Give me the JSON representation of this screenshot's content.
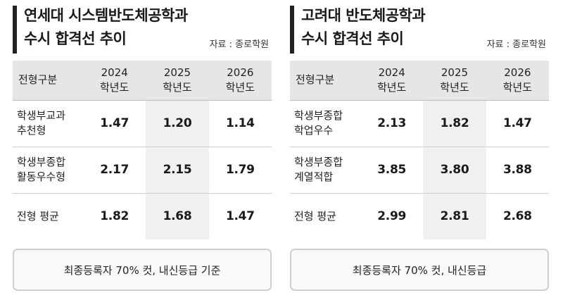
{
  "left": {
    "title_line1": "연세대 시스템반도체공학과",
    "title_line2": "수시 합격선 추이",
    "source": "자료 : 종로학원",
    "header": {
      "col0": "전형구분",
      "y1a": "2024",
      "y1b": "학년도",
      "y2a": "2025",
      "y2b": "학년도",
      "y3a": "2026",
      "y3b": "학년도"
    },
    "rows": [
      {
        "label1": "학생부교과",
        "label2": "추천형",
        "v1": "1.47",
        "v2": "1.20",
        "v3": "1.14"
      },
      {
        "label1": "학생부종합",
        "label2": "활동우수형",
        "v1": "2.17",
        "v2": "2.15",
        "v3": "1.79"
      },
      {
        "label1": "전형 평균",
        "label2": "",
        "v1": "1.82",
        "v2": "1.68",
        "v3": "1.47"
      }
    ],
    "footnote": "최종등록자 70% 컷, 내신등급 기준"
  },
  "right": {
    "title_line1": "고려대 반도체공학과",
    "title_line2": "수시 합격선 추이",
    "source": "자료 : 종로학원",
    "header": {
      "col0": "전형구분",
      "y1a": "2024",
      "y1b": "학년도",
      "y2a": "2025",
      "y2b": "학년도",
      "y3a": "2026",
      "y3b": "학년도"
    },
    "rows": [
      {
        "label1": "학생부종합",
        "label2": "학업우수",
        "v1": "2.13",
        "v2": "1.82",
        "v3": "1.47"
      },
      {
        "label1": "학생부종합",
        "label2": "계열적합",
        "v1": "3.85",
        "v2": "3.80",
        "v3": "3.88"
      },
      {
        "label1": "전형 평균",
        "label2": "",
        "v1": "2.99",
        "v2": "2.81",
        "v3": "2.68"
      }
    ],
    "footnote": "최종등록자 70% 컷, 내신등급"
  }
}
